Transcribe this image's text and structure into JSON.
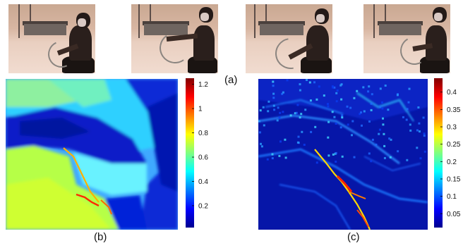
{
  "captions": {
    "a": "(a)",
    "b": "(b)",
    "c": "(c)"
  },
  "frames": [
    {
      "pose": "arm-low"
    },
    {
      "pose": "arm-out"
    },
    {
      "pose": "arm-pull"
    },
    {
      "pose": "arm-release"
    }
  ],
  "colorbar_b": {
    "ticks": [
      "1.2",
      "1",
      "0.8",
      "0.6",
      "0.4",
      "0.2"
    ],
    "values": [
      1.2,
      1.0,
      0.8,
      0.6,
      0.4,
      0.2
    ],
    "range": [
      0.02,
      1.25
    ]
  },
  "colorbar_c": {
    "ticks": [
      "0.4",
      "0.35",
      "0.3",
      "0.25",
      "0.2",
      "0.15",
      "0.1",
      "0.05"
    ],
    "values": [
      0.4,
      0.35,
      0.3,
      0.25,
      0.2,
      0.15,
      0.1,
      0.05
    ],
    "range": [
      0.01,
      0.44
    ]
  },
  "colors": {
    "jet_low": "#00008f",
    "jet_mid": "#7fff7f",
    "jet_high": "#800000"
  }
}
